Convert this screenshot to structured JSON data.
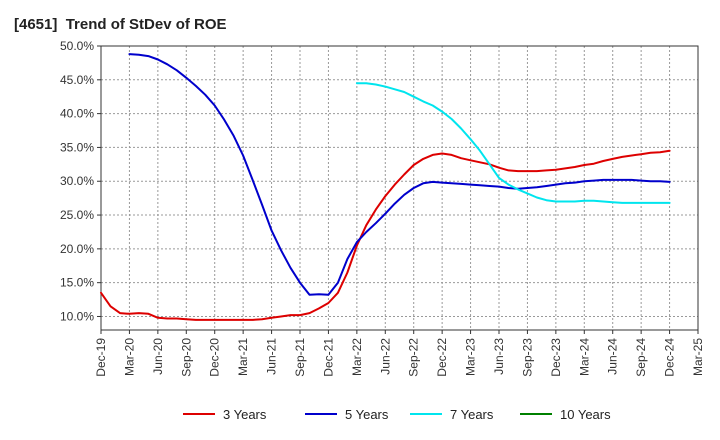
{
  "chart_data": {
    "type": "line",
    "title": "[4651]  Trend of StDev of ROE",
    "xlabel": "",
    "ylabel": "",
    "x_ticks": [
      "Dec-19",
      "Mar-20",
      "Jun-20",
      "Sep-20",
      "Dec-20",
      "Mar-21",
      "Jun-21",
      "Sep-21",
      "Dec-21",
      "Mar-22",
      "Jun-22",
      "Sep-22",
      "Dec-22",
      "Mar-23",
      "Jun-23",
      "Sep-23",
      "Dec-23",
      "Mar-24",
      "Jun-24",
      "Sep-24",
      "Dec-24",
      "Mar-25"
    ],
    "y_ticks": [
      "10.0%",
      "15.0%",
      "20.0%",
      "25.0%",
      "30.0%",
      "35.0%",
      "40.0%",
      "45.0%",
      "50.0%"
    ],
    "ylim": [
      8.0,
      50.0
    ],
    "grid": true,
    "legend_position": "bottom",
    "series": [
      {
        "name": "3 Years",
        "color": "#dd0000",
        "x": [
          "Dec-19",
          "Jan-20",
          "Feb-20",
          "Mar-20",
          "Apr-20",
          "May-20",
          "Jun-20",
          "Jul-20",
          "Aug-20",
          "Sep-20",
          "Oct-20",
          "Nov-20",
          "Dec-20",
          "Jan-21",
          "Feb-21",
          "Mar-21",
          "Apr-21",
          "May-21",
          "Jun-21",
          "Jul-21",
          "Aug-21",
          "Sep-21",
          "Oct-21",
          "Nov-21",
          "Dec-21",
          "Jan-22",
          "Feb-22",
          "Mar-22",
          "Apr-22",
          "May-22",
          "Jun-22",
          "Jul-22",
          "Aug-22",
          "Sep-22",
          "Oct-22",
          "Nov-22",
          "Dec-22",
          "Jan-23",
          "Feb-23",
          "Mar-23",
          "Apr-23",
          "May-23",
          "Jun-23",
          "Jul-23",
          "Aug-23",
          "Sep-23",
          "Oct-23",
          "Nov-23",
          "Dec-23",
          "Jan-24",
          "Feb-24",
          "Mar-24",
          "Apr-24",
          "May-24",
          "Jun-24",
          "Jul-24",
          "Aug-24",
          "Sep-24",
          "Oct-24",
          "Nov-24",
          "Dec-24"
        ],
        "values": [
          13.5,
          11.5,
          10.5,
          10.4,
          10.5,
          10.4,
          9.8,
          9.7,
          9.7,
          9.6,
          9.5,
          9.5,
          9.5,
          9.5,
          9.5,
          9.5,
          9.5,
          9.6,
          9.8,
          10.0,
          10.2,
          10.2,
          10.5,
          11.2,
          12.0,
          13.5,
          16.5,
          20.5,
          23.5,
          25.8,
          27.8,
          29.5,
          31.0,
          32.4,
          33.3,
          33.9,
          34.1,
          33.9,
          33.4,
          33.1,
          32.8,
          32.5,
          32.0,
          31.6,
          31.5,
          31.5,
          31.5,
          31.6,
          31.7,
          31.9,
          32.1,
          32.4,
          32.6,
          33.0,
          33.3,
          33.6,
          33.8,
          34.0,
          34.2,
          34.3,
          34.5
        ]
      },
      {
        "name": "5 Years",
        "color": "#0000cc",
        "x": [
          "Mar-20",
          "Apr-20",
          "May-20",
          "Jun-20",
          "Jul-20",
          "Aug-20",
          "Sep-20",
          "Oct-20",
          "Nov-20",
          "Dec-20",
          "Jan-21",
          "Feb-21",
          "Mar-21",
          "Apr-21",
          "May-21",
          "Jun-21",
          "Jul-21",
          "Aug-21",
          "Sep-21",
          "Oct-21",
          "Nov-21",
          "Dec-21",
          "Jan-22",
          "Feb-22",
          "Mar-22",
          "Apr-22",
          "May-22",
          "Jun-22",
          "Jul-22",
          "Aug-22",
          "Sep-22",
          "Oct-22",
          "Nov-22",
          "Dec-22",
          "Jan-23",
          "Feb-23",
          "Mar-23",
          "Apr-23",
          "May-23",
          "Jun-23",
          "Jul-23",
          "Aug-23",
          "Sep-23",
          "Oct-23",
          "Nov-23",
          "Dec-23",
          "Jan-24",
          "Feb-24",
          "Mar-24",
          "Apr-24",
          "May-24",
          "Jun-24",
          "Jul-24",
          "Aug-24",
          "Sep-24",
          "Oct-24",
          "Nov-24",
          "Dec-24"
        ],
        "values": [
          48.8,
          48.7,
          48.5,
          48.0,
          47.3,
          46.4,
          45.3,
          44.1,
          42.8,
          41.2,
          39.1,
          36.7,
          33.8,
          30.2,
          26.5,
          22.7,
          19.8,
          17.2,
          15.0,
          13.2,
          13.3,
          13.2,
          15.0,
          18.5,
          21.0,
          22.5,
          23.8,
          25.2,
          26.7,
          28.0,
          29.0,
          29.7,
          29.9,
          29.8,
          29.7,
          29.6,
          29.5,
          29.4,
          29.3,
          29.2,
          29.0,
          28.9,
          29.0,
          29.1,
          29.3,
          29.5,
          29.7,
          29.8,
          30.0,
          30.1,
          30.2,
          30.2,
          30.2,
          30.2,
          30.1,
          30.0,
          30.0,
          29.9
        ]
      },
      {
        "name": "7 Years",
        "color": "#00e5ee",
        "x": [
          "Mar-22",
          "Apr-22",
          "May-22",
          "Jun-22",
          "Jul-22",
          "Aug-22",
          "Sep-22",
          "Oct-22",
          "Nov-22",
          "Dec-22",
          "Jan-23",
          "Feb-23",
          "Mar-23",
          "Apr-23",
          "May-23",
          "Jun-23",
          "Jul-23",
          "Aug-23",
          "Sep-23",
          "Oct-23",
          "Nov-23",
          "Dec-23",
          "Jan-24",
          "Feb-24",
          "Mar-24",
          "Apr-24",
          "May-24",
          "Jun-24",
          "Jul-24",
          "Aug-24",
          "Sep-24",
          "Oct-24",
          "Nov-24",
          "Dec-24"
        ],
        "values": [
          44.5,
          44.5,
          44.3,
          44.0,
          43.6,
          43.2,
          42.5,
          41.8,
          41.2,
          40.3,
          39.2,
          37.8,
          36.2,
          34.5,
          32.5,
          30.5,
          29.5,
          28.8,
          28.2,
          27.6,
          27.2,
          27.0,
          27.0,
          27.0,
          27.1,
          27.1,
          27.0,
          26.9,
          26.8,
          26.8,
          26.8,
          26.8,
          26.8,
          26.8
        ]
      },
      {
        "name": "10 Years",
        "color": "#008000",
        "x": [],
        "values": []
      }
    ]
  }
}
